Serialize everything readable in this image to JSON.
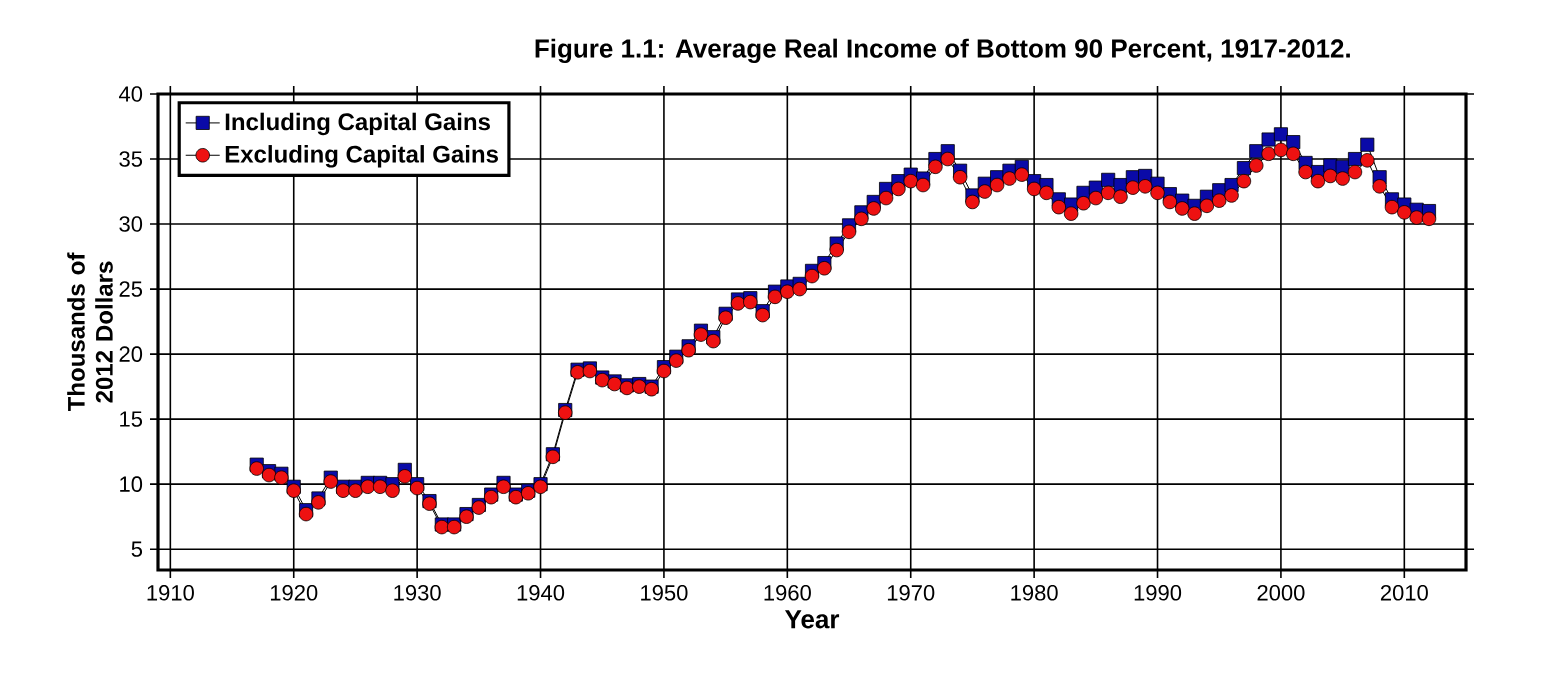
{
  "chart_data": {
    "type": "line",
    "title": "Figure 1.1: Average Real Income of Bottom 90 Percent, 1917-2012.",
    "xlabel": "Year",
    "ylabel": "Thousands of 2012 Dollars",
    "x": [
      1917,
      1918,
      1919,
      1920,
      1921,
      1922,
      1923,
      1924,
      1925,
      1926,
      1927,
      1928,
      1929,
      1930,
      1931,
      1932,
      1933,
      1934,
      1935,
      1936,
      1937,
      1938,
      1939,
      1940,
      1941,
      1942,
      1943,
      1944,
      1945,
      1946,
      1947,
      1948,
      1949,
      1950,
      1951,
      1952,
      1953,
      1954,
      1955,
      1956,
      1957,
      1958,
      1959,
      1960,
      1961,
      1962,
      1963,
      1964,
      1965,
      1966,
      1967,
      1968,
      1969,
      1970,
      1971,
      1972,
      1973,
      1974,
      1975,
      1976,
      1977,
      1978,
      1979,
      1980,
      1981,
      1982,
      1983,
      1984,
      1985,
      1986,
      1987,
      1988,
      1989,
      1990,
      1991,
      1992,
      1993,
      1994,
      1995,
      1996,
      1997,
      1998,
      1999,
      2000,
      2001,
      2002,
      2003,
      2004,
      2005,
      2006,
      2007,
      2008,
      2009,
      2010,
      2011,
      2012
    ],
    "series": [
      {
        "name": "Including Capital Gains",
        "color": "#0a0aa8",
        "marker": "square",
        "values": [
          11.5,
          11.0,
          10.8,
          9.8,
          8.0,
          8.9,
          10.5,
          9.8,
          9.8,
          10.1,
          10.1,
          10.0,
          11.1,
          10.0,
          8.7,
          6.9,
          6.9,
          7.7,
          8.4,
          9.2,
          10.1,
          9.2,
          9.5,
          10.0,
          12.3,
          15.7,
          18.8,
          18.9,
          18.2,
          17.9,
          17.6,
          17.7,
          17.5,
          19.0,
          19.8,
          20.6,
          21.8,
          21.3,
          23.1,
          24.2,
          24.3,
          23.3,
          24.8,
          25.2,
          25.4,
          26.4,
          27.0,
          28.5,
          29.9,
          30.9,
          31.7,
          32.7,
          33.3,
          33.8,
          33.5,
          35.0,
          35.6,
          34.1,
          32.2,
          33.1,
          33.6,
          34.1,
          34.4,
          33.3,
          33.0,
          31.9,
          31.5,
          32.4,
          32.8,
          33.4,
          33.0,
          33.6,
          33.7,
          33.1,
          32.3,
          31.8,
          31.4,
          32.1,
          32.6,
          33.0,
          34.3,
          35.6,
          36.5,
          36.9,
          36.3,
          34.7,
          34.0,
          34.5,
          34.4,
          35.0,
          36.1,
          33.6,
          31.9,
          31.5,
          31.1,
          31.0
        ]
      },
      {
        "name": "Excluding Capital Gains",
        "color": "#ee1111",
        "marker": "circle",
        "values": [
          11.2,
          10.7,
          10.5,
          9.5,
          7.7,
          8.6,
          10.2,
          9.5,
          9.5,
          9.8,
          9.8,
          9.5,
          10.6,
          9.7,
          8.5,
          6.7,
          6.7,
          7.5,
          8.2,
          9.0,
          9.8,
          9.0,
          9.3,
          9.8,
          12.1,
          15.5,
          18.6,
          18.7,
          18.0,
          17.7,
          17.4,
          17.5,
          17.3,
          18.7,
          19.5,
          20.3,
          21.5,
          21.0,
          22.8,
          23.9,
          24.0,
          23.0,
          24.4,
          24.8,
          25.0,
          26.0,
          26.6,
          28.0,
          29.4,
          30.4,
          31.2,
          32.0,
          32.7,
          33.3,
          33.0,
          34.4,
          35.0,
          33.6,
          31.7,
          32.5,
          33.0,
          33.5,
          33.8,
          32.7,
          32.4,
          31.3,
          30.8,
          31.6,
          32.0,
          32.4,
          32.1,
          32.8,
          32.9,
          32.4,
          31.7,
          31.2,
          30.8,
          31.4,
          31.8,
          32.2,
          33.3,
          34.5,
          35.4,
          35.7,
          35.4,
          34.0,
          33.3,
          33.7,
          33.5,
          34.0,
          34.9,
          32.9,
          31.3,
          30.9,
          30.5,
          30.4
        ]
      }
    ],
    "xlim": [
      1909,
      2015
    ],
    "ylim": [
      3.4,
      40
    ],
    "xticks": [
      1910,
      1920,
      1930,
      1940,
      1950,
      1960,
      1970,
      1980,
      1990,
      2000,
      2010
    ],
    "yticks": [
      5,
      10,
      15,
      20,
      25,
      30,
      35,
      40
    ],
    "grid": true,
    "legend": "top left",
    "line_style": "solid"
  }
}
